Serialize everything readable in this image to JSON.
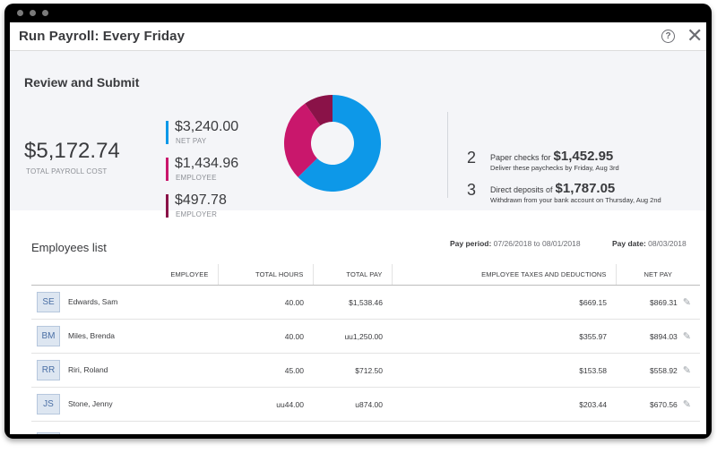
{
  "window": {
    "title": "Run Payroll: Every Friday",
    "help_icon": "question-circle-icon",
    "close_icon": "close-icon",
    "help_glyph": "?",
    "close_glyph": "✕"
  },
  "review": {
    "title": "Review and Submit",
    "total": {
      "amount": "$5,172.74",
      "label": "TOTAL PAYROLL COST"
    },
    "breakdown": [
      {
        "amount": "$3,240.00",
        "label": "NET PAY",
        "color": "#0d98e8"
      },
      {
        "amount": "$1,434.96",
        "label": "EMPLOYEE",
        "color": "#c9176c"
      },
      {
        "amount": "$497.78",
        "label": "EMPLOYER",
        "color": "#8a1248"
      }
    ],
    "donut": {
      "net_pay": 3240.0,
      "employee": 1434.96,
      "employer": 497.78
    },
    "payments": [
      {
        "count": "2",
        "label": "Paper checks for",
        "amount": "$1,452.95",
        "note": "Deliver these paychecks by Friday, Aug 3rd"
      },
      {
        "count": "3",
        "label": "Direct deposits of",
        "amount": "$1,787.05",
        "note": "Withdrawn from your bank account on Thursday, Aug 2nd"
      }
    ]
  },
  "employees": {
    "title": "Employees list",
    "pay_period_label": "Pay period:",
    "pay_period_value": "07/26/2018 to 08/01/2018",
    "pay_date_label": "Pay date:",
    "pay_date_value": "08/03/2018",
    "columns": [
      "EMPLOYEE",
      "TOTAL HOURS",
      "TOTAL PAY",
      "EMPLOYEE TAXES AND DEDUCTIONS",
      "NET PAY"
    ],
    "rows": [
      {
        "initials": "SE",
        "name": "Edwards, Sam",
        "hours": "40.00",
        "total_pay": "$1,538.46",
        "taxes": "$669.15",
        "net_pay": "$869.31"
      },
      {
        "initials": "BM",
        "name": "Miles, Brenda",
        "hours": "40.00",
        "total_pay": "uu1,250.00",
        "taxes": "$355.97",
        "net_pay": "$894.03"
      },
      {
        "initials": "RR",
        "name": "Riri, Roland",
        "hours": "45.00",
        "total_pay": "$712.50",
        "taxes": "$153.58",
        "net_pay": "$558.92"
      },
      {
        "initials": "JS",
        "name": "Stone, Jenny",
        "hours": "uu44.00",
        "total_pay": "u874.00",
        "taxes": "$203.44",
        "net_pay": "$670.56"
      }
    ],
    "edit_icon": "pencil-icon",
    "edit_glyph": "✎"
  }
}
